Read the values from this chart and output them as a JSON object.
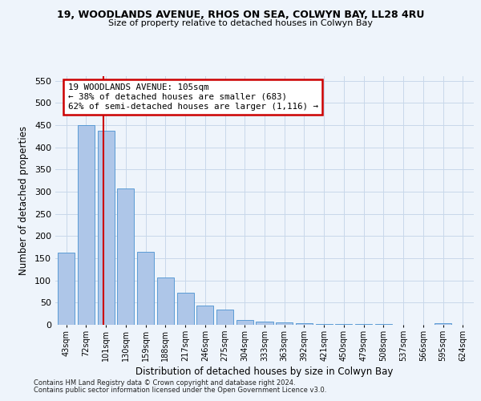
{
  "title1": "19, WOODLANDS AVENUE, RHOS ON SEA, COLWYN BAY, LL28 4RU",
  "title2": "Size of property relative to detached houses in Colwyn Bay",
  "xlabel": "Distribution of detached houses by size in Colwyn Bay",
  "ylabel": "Number of detached properties",
  "footnote1": "Contains HM Land Registry data © Crown copyright and database right 2024.",
  "footnote2": "Contains public sector information licensed under the Open Government Licence v3.0.",
  "categories": [
    "43sqm",
    "72sqm",
    "101sqm",
    "130sqm",
    "159sqm",
    "188sqm",
    "217sqm",
    "246sqm",
    "275sqm",
    "304sqm",
    "333sqm",
    "363sqm",
    "392sqm",
    "421sqm",
    "450sqm",
    "479sqm",
    "508sqm",
    "537sqm",
    "566sqm",
    "595sqm",
    "624sqm"
  ],
  "values": [
    163,
    450,
    437,
    307,
    165,
    107,
    73,
    44,
    35,
    10,
    8,
    6,
    3,
    2,
    1,
    1,
    1,
    0,
    0,
    4,
    0
  ],
  "bar_color": "#aec6e8",
  "bar_edge_color": "#5b9bd5",
  "grid_color": "#c8d8ea",
  "background_color": "#eef4fb",
  "red_line_x": 1.88,
  "annotation_line1": "19 WOODLANDS AVENUE: 105sqm",
  "annotation_line2": "← 38% of detached houses are smaller (683)",
  "annotation_line3": "62% of semi-detached houses are larger (1,116) →",
  "annotation_box_color": "#ffffff",
  "annotation_border_color": "#cc0000",
  "ylim": [
    0,
    560
  ],
  "yticks": [
    0,
    50,
    100,
    150,
    200,
    250,
    300,
    350,
    400,
    450,
    500,
    550
  ]
}
